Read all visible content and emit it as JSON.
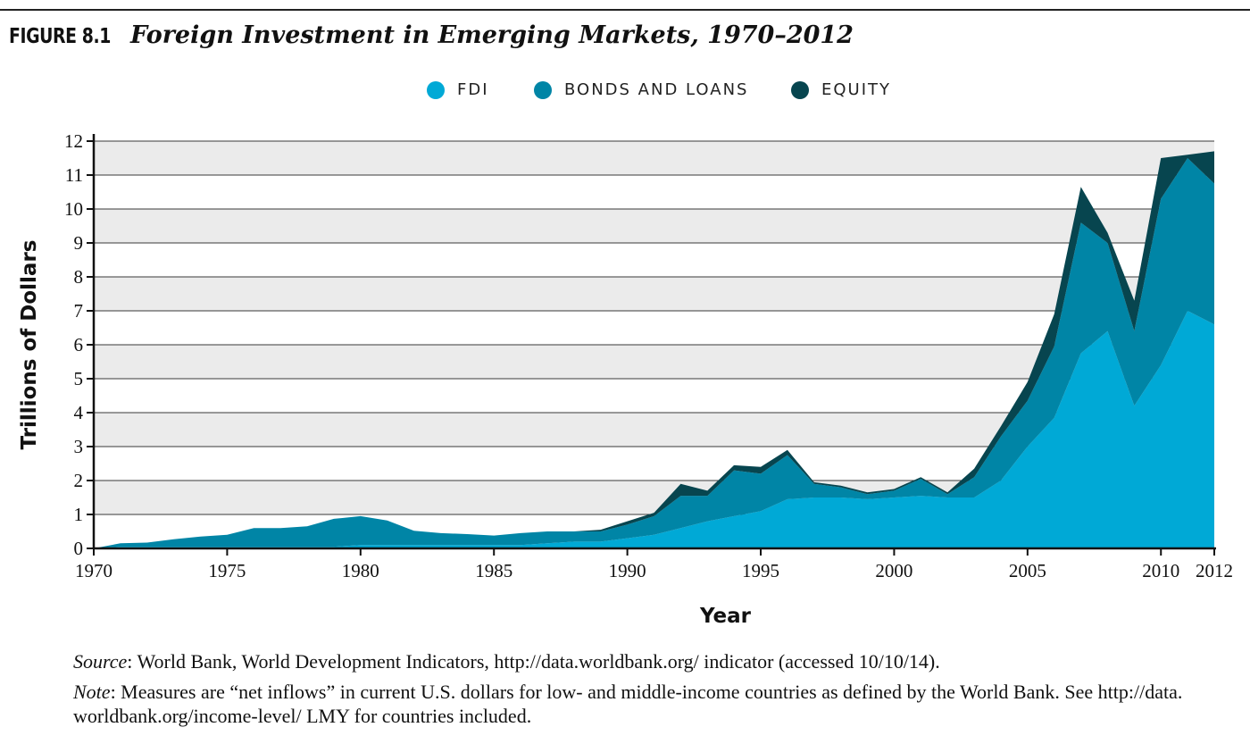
{
  "figure": {
    "label": "FIGURE 8.1",
    "title": "Foreign Investment in Emerging Markets, 1970–2012"
  },
  "legend": [
    {
      "label": "FDI",
      "color": "#00a9d6"
    },
    {
      "label": "BONDS AND LOANS",
      "color": "#0085a6"
    },
    {
      "label": "EQUITY",
      "color": "#07454f"
    }
  ],
  "chart_data": {
    "type": "area",
    "stacked": true,
    "xlabel": "Year",
    "ylabel": "Trillions of Dollars",
    "ylim": [
      0,
      12
    ],
    "xlim": [
      1970,
      2012
    ],
    "grid": "horizontal bands",
    "legend_position": "top-center",
    "yticks": [
      "0",
      "1",
      "2",
      "3",
      "4",
      "5",
      "6",
      "7",
      "8",
      "9",
      "10",
      "11",
      "12"
    ],
    "xticks": [
      "1970",
      "1975",
      "1980",
      "1985",
      "1990",
      "1995",
      "2000",
      "2005",
      "2010",
      "2012"
    ],
    "x": [
      1970,
      1971,
      1972,
      1973,
      1974,
      1975,
      1976,
      1977,
      1978,
      1979,
      1980,
      1981,
      1982,
      1983,
      1984,
      1985,
      1986,
      1987,
      1988,
      1989,
      1990,
      1991,
      1992,
      1993,
      1994,
      1995,
      1996,
      1997,
      1998,
      1999,
      2000,
      2001,
      2002,
      2003,
      2004,
      2005,
      2006,
      2007,
      2008,
      2009,
      2010,
      2011,
      2012
    ],
    "series": [
      {
        "name": "FDI",
        "color": "#00a9d6",
        "values": [
          0.0,
          0.05,
          0.05,
          0.05,
          0.05,
          0.05,
          0.05,
          0.05,
          0.05,
          0.05,
          0.1,
          0.1,
          0.1,
          0.1,
          0.1,
          0.1,
          0.1,
          0.15,
          0.2,
          0.2,
          0.3,
          0.4,
          0.6,
          0.8,
          0.95,
          1.1,
          1.45,
          1.5,
          1.5,
          1.45,
          1.5,
          1.55,
          1.5,
          1.5,
          2.0,
          3.0,
          3.85,
          5.75,
          6.4,
          4.2,
          5.4,
          7.0,
          6.6
        ]
      },
      {
        "name": "BONDS AND LOANS",
        "color": "#0085a6",
        "values": [
          0.0,
          0.1,
          0.12,
          0.22,
          0.3,
          0.35,
          0.55,
          0.55,
          0.6,
          0.82,
          0.85,
          0.72,
          0.42,
          0.35,
          0.32,
          0.28,
          0.35,
          0.35,
          0.3,
          0.3,
          0.4,
          0.55,
          0.95,
          0.75,
          1.35,
          1.1,
          1.3,
          0.4,
          0.3,
          0.15,
          0.2,
          0.5,
          0.1,
          0.6,
          1.3,
          1.35,
          2.1,
          3.85,
          2.6,
          2.2,
          4.9,
          4.5,
          4.15
        ]
      },
      {
        "name": "EQUITY",
        "color": "#07454f",
        "values": [
          0.0,
          0.0,
          0.0,
          0.0,
          0.0,
          0.0,
          0.0,
          0.0,
          0.0,
          0.0,
          0.0,
          0.0,
          0.0,
          0.0,
          0.0,
          0.0,
          0.0,
          0.0,
          0.0,
          0.05,
          0.1,
          0.1,
          0.35,
          0.15,
          0.15,
          0.2,
          0.15,
          0.05,
          0.05,
          0.05,
          0.05,
          0.05,
          0.05,
          0.25,
          0.3,
          0.55,
          0.95,
          1.05,
          0.3,
          0.9,
          1.2,
          0.1,
          0.95
        ]
      }
    ]
  },
  "notes": {
    "source_label": "Source",
    "source_text": ": World Bank, World Development Indicators, http://data.worldbank.org/ indicator (accessed 10/10/14).",
    "note_label": "Note",
    "note_text": ": Measures are “net inflows” in current U.S. dollars for low- and middle-income countries as defined by the World Bank. See http://data. worldbank.org/income-level/ LMY for countries included."
  }
}
